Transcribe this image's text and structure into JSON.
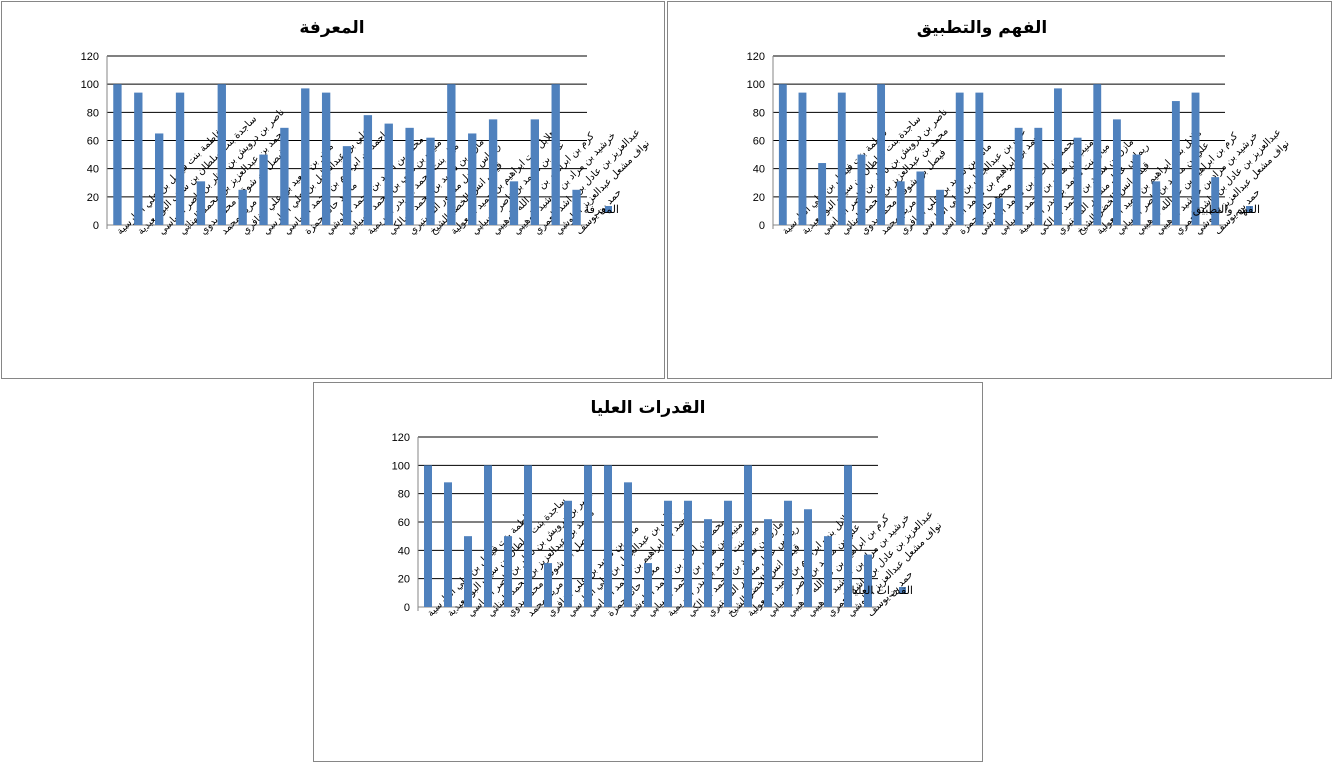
{
  "colors": {
    "bar": "#4f81bd",
    "grid": "#000000",
    "axis": "#868686"
  },
  "chart_data": [
    {
      "type": "bar",
      "title": "المعرفة",
      "legend": "المعرفة",
      "legend_position": "right",
      "ylim": [
        0,
        120
      ],
      "yticks": [
        "0",
        "20",
        "40",
        "60",
        "80",
        "100",
        "120"
      ],
      "categories": [
        "فاطمة بنت فيصل بن علي القارسية",
        "ساجدة بنت سلطان بن سيف البوسعيدية",
        "ناصر بن درويش بن ناظر بن ناصر الرياسي",
        "محمد بن عبدالعزيز بن محمد الهنائي",
        "فيصل بن شوقي محمد بدوي",
        "مريم محمد",
        "ماهر بن سعيد بن علي الغافري",
        "علي بن عبدالجليل بن علي القارسي",
        "احمد بن ابراهيم بن محمد الرياسي",
        "محمد حاتم حمزة",
        "محمد بن احمد بن محمد البلوشي",
        "منيب بن هاني بن محمد السيابي",
        "ميار بنت محمد بن بدر العريمية",
        "مازن بن سعيد بن محمد المالكي",
        "ريماس عادل منصور المستيري",
        "قيس انس الخضر الشيخ",
        "هلابل بنت ابراهيم بن حميد المعولية",
        "علي بن محمد بن ناصر السيابي",
        "كرم بن ابراهيم بن عبدالله الوهيبي",
        "خرشيد بن مراد بن خرشيد الوهيبي",
        "عبدالعزيز بن عادل بن راشد العمري",
        "نواف مشعل عبدالعزيز البلوشي",
        "حمد بن يوسف"
      ],
      "values": [
        100,
        94,
        65,
        94,
        31,
        100,
        25,
        50,
        69,
        97,
        94,
        56,
        78,
        72,
        69,
        62,
        100,
        65,
        75,
        31,
        75,
        100,
        25
      ]
    },
    {
      "type": "bar",
      "title": "الفهم والتطبيق",
      "legend": "الفهم والتطبيق",
      "legend_position": "right",
      "ylim": [
        0,
        120
      ],
      "yticks": [
        "0",
        "20",
        "40",
        "60",
        "80",
        "100",
        "120"
      ],
      "categories": [
        "فاطمة بنت فيصل بن علي القارسية",
        "ساجدة بنت سلطان بن سيف البوسعيدية",
        "ناصر بن درويش بن ناظر بن ناصر الرياسي",
        "محمد بن عبدالعزيز بن محمد الهنائي",
        "فيصل بن شوقي محمد بدوي",
        "مريم محمد",
        "ماهر بن سعيد بن علي الغافري",
        "علي بن عبدالجليل بن علي القارسي",
        "احمد بن ابراهيم بن محمد الرياسي",
        "محمد حاتم حمزة",
        "محمد بن احمد بن محمد البلوشي",
        "منيب بن هاني بن محمد السيابي",
        "ميار بنت محمد بن بدر العريمية",
        "مازن بن سعيد بن محمد المالكي",
        "ريماس عادل منصور المستيري",
        "قيس انس الخضر الشيخ",
        "هلابل بنت ابراهيم بن حميد المعولية",
        "علي بن محمد بن ناصر السيابي",
        "كرم بن ابراهيم بن عبدالله الوهيبي",
        "خرشيد بن مراد بن خرشيد الوهيبي",
        "عبدالعزيز بن عادل بن راشد العمري",
        "نواف مشعل عبدالعزيز البلوشي",
        "حمد بن يوسف"
      ],
      "values": [
        100,
        94,
        44,
        94,
        50,
        100,
        31,
        38,
        25,
        94,
        94,
        19,
        69,
        69,
        97,
        62,
        100,
        75,
        50,
        31,
        88,
        94,
        34
      ]
    },
    {
      "type": "bar",
      "title": "القدرات العليا",
      "legend": "القدرات العليا",
      "legend_position": "right",
      "ylim": [
        0,
        120
      ],
      "yticks": [
        "0",
        "20",
        "40",
        "60",
        "80",
        "100",
        "120"
      ],
      "categories": [
        "فاطمة بنت فيصل بن علي القارسية",
        "ساجدة بنت سلطان بن سيف البوسعيدية",
        "ناصر بن درويش بن ناظر بن ناصر الرياسي",
        "محمد بن عبدالعزيز بن محمد الهنائي",
        "فيصل بن شوقي محمد بدوي",
        "مريم محمد",
        "ماهر بن سعيد بن علي الغافري",
        "علي بن عبدالجليل بن علي القارسي",
        "احمد بن ابراهيم بن محمد الرياسي",
        "محمد حاتم حمزة",
        "محمد بن احمد بن محمد البلوشي",
        "منيب بن هاني بن محمد السيابي",
        "ميار بنت محمد بن بدر العريمية",
        "مازن بن سعيد بن محمد المالكي",
        "ريماس عادل منصور المستيري",
        "قيس انس الخضر الشيخ",
        "هلابل بنت ابراهيم بن حميد المعولية",
        "علي بن محمد بن ناصر السيابي",
        "كرم بن ابراهيم بن عبدالله الوهيبي",
        "خرشيد بن مراد بن خرشيد الوهيبي",
        "عبدالعزيز بن عادل بن راشد العمري",
        "نواف مشعل عبدالعزيز البلوشي",
        "حمد بن يوسف"
      ],
      "values": [
        100,
        88,
        50,
        100,
        50,
        100,
        31,
        75,
        100,
        100,
        88,
        31,
        75,
        75,
        62,
        75,
        100,
        62,
        75,
        69,
        50,
        100,
        37
      ]
    }
  ]
}
